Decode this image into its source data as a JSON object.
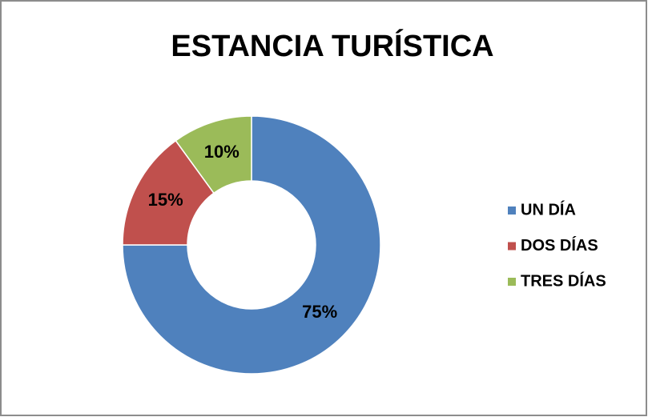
{
  "chart_data": {
    "type": "donut",
    "title": "ESTANCIA TURÍSTICA",
    "categories": [
      "UN DÍA",
      "DOS DÍAS",
      "TRES DÍAS"
    ],
    "values": [
      75,
      15,
      10
    ],
    "value_labels": [
      "75%",
      "15%",
      "10%"
    ],
    "colors": [
      "#4f81bd",
      "#c0504d",
      "#9bbb59"
    ],
    "legend": "right"
  }
}
